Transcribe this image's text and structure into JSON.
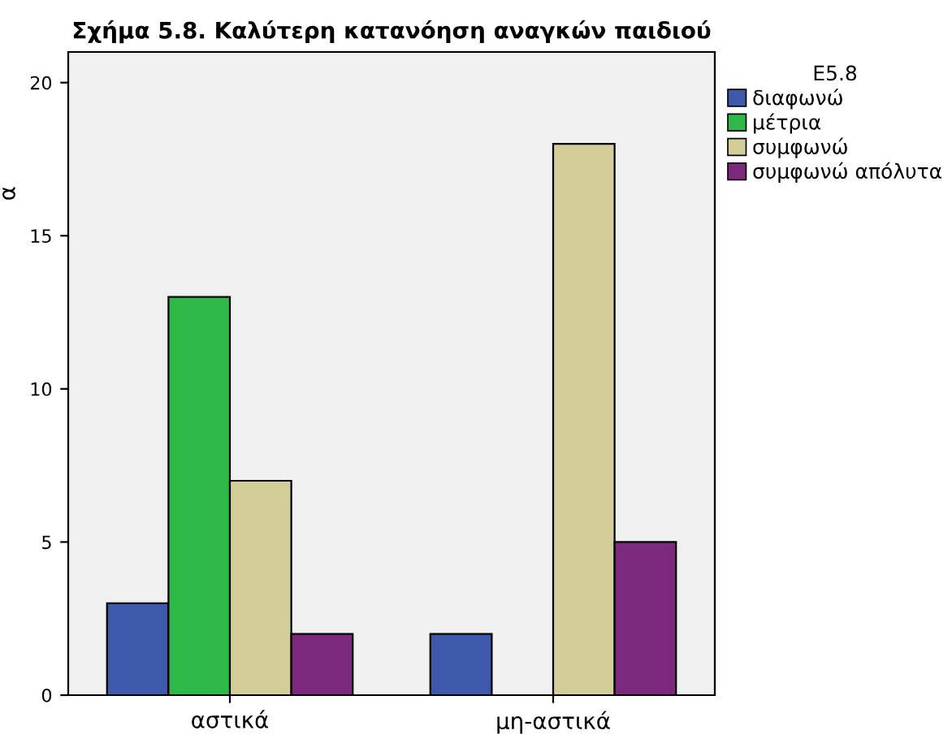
{
  "chart_data": {
    "type": "bar",
    "title": "Σχήμα 5.8. Καλύτερη κατανόηση αναγκών παιδιού",
    "ylabel": "α",
    "legend_title": "E5.8",
    "categories": [
      "αστικά",
      "μη-αστικά"
    ],
    "series": [
      {
        "name": "διαφωνώ",
        "color": "#3e58ac",
        "values": [
          3,
          2
        ]
      },
      {
        "name": "μέτρια",
        "color": "#2eb848",
        "values": [
          13,
          null
        ]
      },
      {
        "name": "συμφωνώ",
        "color": "#d3ce97",
        "values": [
          7,
          18
        ]
      },
      {
        "name": "συμφωνώ απόλυτα",
        "color": "#7c287d",
        "values": [
          2,
          5
        ]
      }
    ],
    "ylim": [
      0,
      21
    ],
    "yticks": [
      0,
      5,
      10,
      15,
      20
    ],
    "grid": false,
    "legend": "right"
  }
}
